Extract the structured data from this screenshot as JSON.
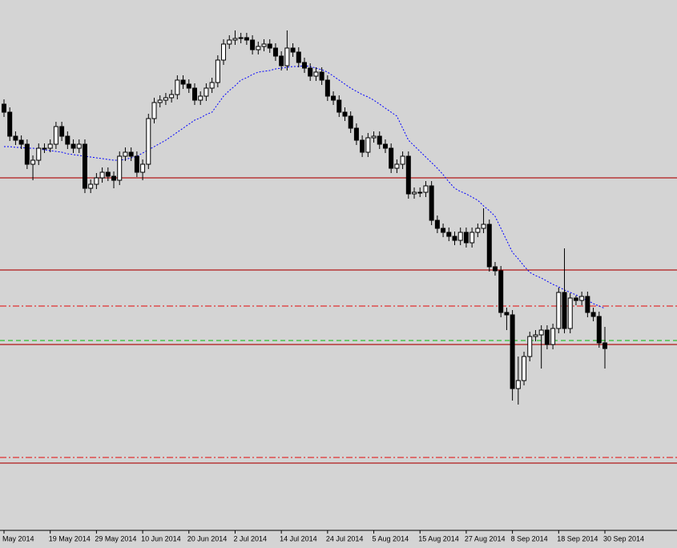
{
  "chart_data": {
    "type": "candlestick",
    "categories": [
      "May 2014",
      null,
      null,
      null,
      null,
      null,
      null,
      null,
      "19 May 2014",
      null,
      null,
      null,
      null,
      null,
      null,
      null,
      "29 May 2014",
      null,
      null,
      null,
      null,
      null,
      null,
      null,
      "10 Jun 2014",
      null,
      null,
      null,
      null,
      null,
      null,
      null,
      "20 Jun 2014",
      null,
      null,
      null,
      null,
      null,
      null,
      null,
      "2 Jul 2014",
      null,
      null,
      null,
      null,
      null,
      null,
      null,
      "14 Jul 2014",
      null,
      null,
      null,
      null,
      null,
      null,
      null,
      "24 Jul 2014",
      null,
      null,
      null,
      null,
      null,
      null,
      null,
      "5 Aug 2014",
      null,
      null,
      null,
      null,
      null,
      null,
      null,
      "15 Aug 2014",
      null,
      null,
      null,
      null,
      null,
      null,
      null,
      "27 Aug 2014",
      null,
      null,
      null,
      null,
      null,
      null,
      null,
      "8 Sep 2014",
      null,
      null,
      null,
      null,
      null,
      null,
      null,
      "18 Sep 2014",
      null,
      null,
      null,
      null,
      null,
      null,
      null,
      "30 Sep 2014"
    ],
    "ohlc": [
      [
        530,
        536,
        514,
        520
      ],
      [
        520,
        526,
        484,
        490
      ],
      [
        490,
        496,
        479,
        485
      ],
      [
        485,
        491,
        474,
        480
      ],
      [
        480,
        486,
        449,
        455
      ],
      [
        455,
        466,
        435,
        460
      ],
      [
        460,
        481,
        454,
        475
      ],
      [
        475,
        481,
        469,
        475
      ],
      [
        475,
        486,
        470,
        480
      ],
      [
        480,
        508,
        474,
        502
      ],
      [
        502,
        508,
        484,
        490
      ],
      [
        490,
        496,
        474,
        480
      ],
      [
        480,
        486,
        469,
        475
      ],
      [
        475,
        486,
        469,
        480
      ],
      [
        480,
        486,
        419,
        425
      ],
      [
        425,
        436,
        419,
        430
      ],
      [
        430,
        444,
        424,
        438
      ],
      [
        438,
        451,
        432,
        445
      ],
      [
        445,
        451,
        434,
        440
      ],
      [
        440,
        446,
        425,
        435
      ],
      [
        435,
        471,
        429,
        465
      ],
      [
        465,
        476,
        459,
        470
      ],
      [
        470,
        476,
        459,
        465
      ],
      [
        465,
        471,
        439,
        445
      ],
      [
        445,
        461,
        435,
        455
      ],
      [
        455,
        518,
        449,
        512
      ],
      [
        512,
        538,
        506,
        532
      ],
      [
        532,
        541,
        526,
        535
      ],
      [
        535,
        544,
        529,
        538
      ],
      [
        538,
        548,
        532,
        542
      ],
      [
        542,
        566,
        536,
        560
      ],
      [
        560,
        566,
        549,
        555
      ],
      [
        555,
        561,
        544,
        550
      ],
      [
        550,
        556,
        529,
        535
      ],
      [
        535,
        546,
        529,
        540
      ],
      [
        540,
        556,
        534,
        550
      ],
      [
        550,
        563,
        544,
        557
      ],
      [
        557,
        591,
        551,
        585
      ],
      [
        585,
        611,
        579,
        605
      ],
      [
        605,
        616,
        599,
        610
      ],
      [
        610,
        622,
        604,
        612
      ],
      [
        612,
        619,
        606,
        613
      ],
      [
        613,
        619,
        604,
        610
      ],
      [
        610,
        616,
        592,
        598
      ],
      [
        598,
        608,
        592,
        602
      ],
      [
        602,
        611,
        596,
        605
      ],
      [
        605,
        611,
        594,
        600
      ],
      [
        600,
        606,
        584,
        590
      ],
      [
        590,
        596,
        572,
        578
      ],
      [
        578,
        622,
        572,
        600
      ],
      [
        600,
        606,
        589,
        595
      ],
      [
        595,
        601,
        576,
        582
      ],
      [
        582,
        588,
        569,
        575
      ],
      [
        575,
        581,
        559,
        565
      ],
      [
        565,
        576,
        559,
        570
      ],
      [
        570,
        576,
        554,
        560
      ],
      [
        560,
        566,
        534,
        540
      ],
      [
        540,
        546,
        529,
        535
      ],
      [
        535,
        541,
        514,
        520
      ],
      [
        520,
        526,
        509,
        515
      ],
      [
        515,
        521,
        494,
        500
      ],
      [
        500,
        506,
        479,
        485
      ],
      [
        485,
        491,
        464,
        470
      ],
      [
        470,
        494,
        464,
        488
      ],
      [
        488,
        496,
        482,
        490
      ],
      [
        490,
        496,
        474,
        480
      ],
      [
        480,
        486,
        469,
        475
      ],
      [
        475,
        481,
        444,
        450
      ],
      [
        450,
        461,
        444,
        455
      ],
      [
        455,
        471,
        449,
        465
      ],
      [
        465,
        471,
        412,
        418
      ],
      [
        418,
        426,
        412,
        420
      ],
      [
        420,
        426,
        414,
        420
      ],
      [
        420,
        434,
        414,
        428
      ],
      [
        428,
        434,
        379,
        385
      ],
      [
        385,
        391,
        369,
        375
      ],
      [
        375,
        381,
        364,
        370
      ],
      [
        370,
        376,
        359,
        365
      ],
      [
        365,
        371,
        354,
        360
      ],
      [
        360,
        376,
        354,
        370
      ],
      [
        370,
        376,
        351,
        357
      ],
      [
        357,
        376,
        351,
        370
      ],
      [
        370,
        381,
        364,
        375
      ],
      [
        375,
        400,
        369,
        380
      ],
      [
        380,
        386,
        321,
        327
      ],
      [
        327,
        333,
        316,
        322
      ],
      [
        322,
        328,
        264,
        270
      ],
      [
        270,
        276,
        248,
        267
      ],
      [
        267,
        273,
        160,
        175
      ],
      [
        175,
        215,
        155,
        185
      ],
      [
        185,
        221,
        179,
        215
      ],
      [
        215,
        246,
        209,
        240
      ],
      [
        240,
        248,
        234,
        242
      ],
      [
        242,
        254,
        200,
        248
      ],
      [
        248,
        254,
        224,
        230
      ],
      [
        230,
        256,
        224,
        250
      ],
      [
        250,
        301,
        244,
        295
      ],
      [
        295,
        350,
        244,
        250
      ],
      [
        250,
        294,
        244,
        288
      ],
      [
        288,
        291,
        279,
        285
      ],
      [
        285,
        296,
        279,
        290
      ],
      [
        290,
        296,
        264,
        270
      ],
      [
        270,
        276,
        259,
        265
      ],
      [
        265,
        271,
        226,
        232
      ],
      [
        232,
        252,
        200,
        225
      ]
    ],
    "up_color": "#ffffff",
    "down_color": "#000000",
    "ma": {
      "color": "#0000ff",
      "values": [
        477,
        477,
        476,
        476,
        475,
        475,
        474,
        473,
        472,
        471,
        470,
        468,
        467,
        466,
        465,
        464,
        463,
        462,
        461,
        460,
        460,
        461,
        463,
        465,
        469,
        473,
        477,
        481,
        485,
        490,
        495,
        500,
        505,
        510,
        513,
        517,
        520,
        530,
        540,
        547,
        553,
        560,
        563,
        567,
        570,
        571,
        572,
        574,
        575,
        576,
        577,
        577,
        578,
        577,
        575,
        573,
        570,
        565,
        560,
        555,
        550,
        546,
        542,
        539,
        535,
        530,
        525,
        520,
        515,
        500,
        485,
        478,
        471,
        464,
        457,
        450,
        442,
        433,
        425,
        421,
        418,
        414,
        410,
        403,
        397,
        390,
        375,
        360,
        345,
        337,
        328,
        320,
        316,
        313,
        309,
        305,
        302,
        298,
        295,
        292,
        288,
        285,
        281,
        278,
        275
      ]
    },
    "levels": [
      {
        "value": 438,
        "color": "#b01818",
        "style": "solid"
      },
      {
        "value": 323,
        "color": "#b01818",
        "style": "solid"
      },
      {
        "value": 230,
        "color": "#b01818",
        "style": "solid"
      },
      {
        "value": 82,
        "color": "#b01818",
        "style": "solid"
      },
      {
        "value": 278,
        "color": "#e03030",
        "style": "dashdot"
      },
      {
        "value": 89,
        "color": "#e03030",
        "style": "dashdot"
      },
      {
        "value": 235,
        "color": "#30c030",
        "style": "dashed"
      }
    ],
    "ylim": [
      0,
      660
    ]
  }
}
